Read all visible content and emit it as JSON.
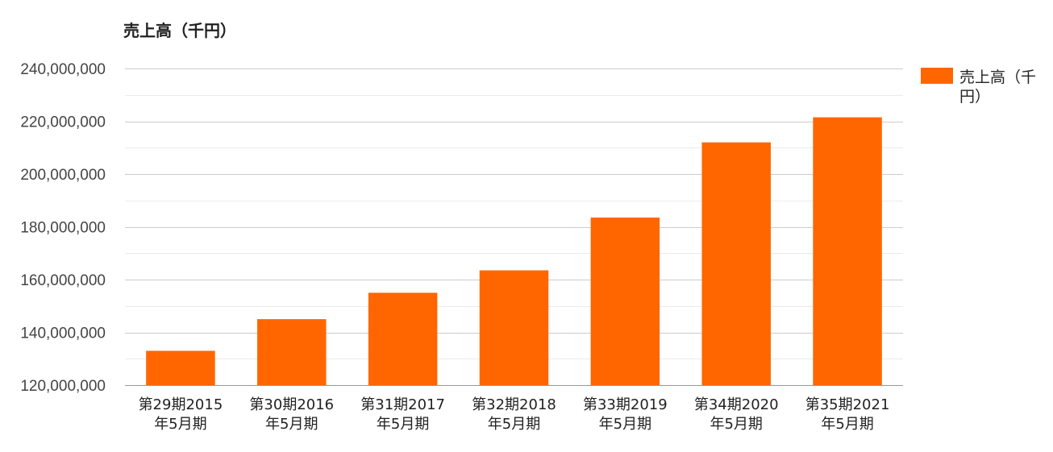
{
  "chart_data": {
    "type": "bar",
    "title": "売上高（千円）",
    "categories": [
      [
        "第29期2015",
        "年5月期"
      ],
      [
        "第30期2016",
        "年5月期"
      ],
      [
        "第31期2017",
        "年5月期"
      ],
      [
        "第32期2018",
        "年5月期"
      ],
      [
        "第33期2019",
        "年5月期"
      ],
      [
        "第34期2020",
        "年5月期"
      ],
      [
        "第35期2021",
        "年5月期"
      ]
    ],
    "series": [
      {
        "name": "売上高（千円）",
        "legend_lines": [
          "売上高（千",
          "円）"
        ],
        "color": "#ff6600",
        "values": [
          133000000,
          145000000,
          155000000,
          163500000,
          183500000,
          212000000,
          221500000
        ]
      }
    ],
    "ylim": [
      120000000,
      240000000
    ],
    "yticks": [
      {
        "value": 240000000,
        "label": "240,000,000"
      },
      {
        "value": 220000000,
        "label": "220,000,000"
      },
      {
        "value": 200000000,
        "label": "200,000,000"
      },
      {
        "value": 180000000,
        "label": "180,000,000"
      },
      {
        "value": 160000000,
        "label": "160,000,000"
      },
      {
        "value": 140000000,
        "label": "140,000,000"
      },
      {
        "value": 120000000,
        "label": "120,000,000"
      }
    ],
    "minor_gridlines": [
      130000000,
      150000000,
      170000000,
      190000000,
      210000000,
      230000000
    ],
    "xlabel": "",
    "ylabel": "",
    "grid": true,
    "legend_position": "right"
  }
}
